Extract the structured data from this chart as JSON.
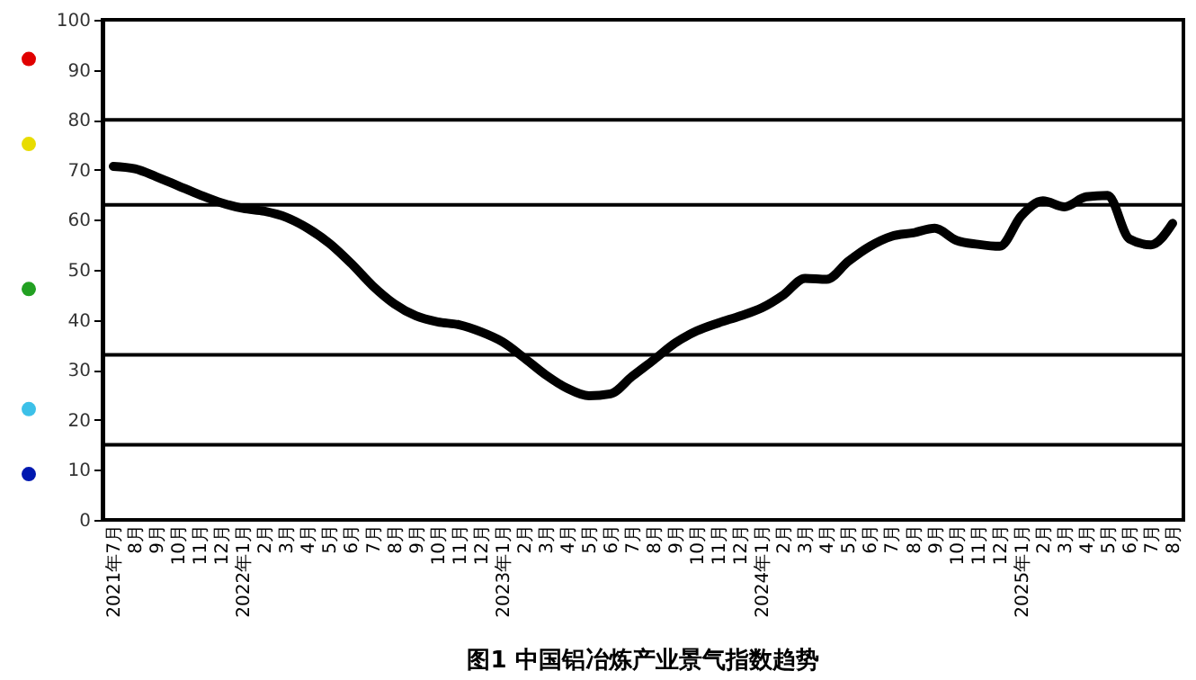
{
  "chart_data": {
    "type": "line",
    "title": "图1  中国铝冶炼产业景气指数趋势",
    "categories": [
      "2021年7月",
      "8月",
      "9月",
      "10月",
      "11月",
      "12月",
      "2022年1月",
      "2月",
      "3月",
      "4月",
      "5月",
      "6月",
      "7月",
      "8月",
      "9月",
      "10月",
      "11月",
      "12月",
      "2023年1月",
      "2月",
      "3月",
      "4月",
      "5月",
      "6月",
      "7月",
      "8月",
      "9月",
      "10月",
      "11月",
      "12月",
      "2024年1月",
      "2月",
      "3月",
      "4月",
      "5月",
      "6月",
      "7月",
      "8月",
      "9月",
      "10月",
      "11月",
      "12月",
      "2025年1月",
      "2月",
      "3月",
      "4月",
      "5月",
      "6月",
      "7月",
      "8月"
    ],
    "series": [
      {
        "color": "#000000",
        "values": [
          70.7,
          70.2,
          68.6,
          66.8,
          65.0,
          63.4,
          62.3,
          61.7,
          60.5,
          58.3,
          55.3,
          51.3,
          46.8,
          43.2,
          40.8,
          39.6,
          39.0,
          37.6,
          35.6,
          32.4,
          29.0,
          26.3,
          24.8,
          25.2,
          28.7,
          32.0,
          35.4,
          37.8,
          39.4,
          40.8,
          42.4,
          45.0,
          48.3,
          48.1,
          51.7,
          54.7,
          56.7,
          57.4,
          58.3,
          55.9,
          55.1,
          54.7,
          60.8,
          63.8,
          62.6,
          64.6,
          64.9,
          56.2,
          55.0,
          59.3
        ]
      }
    ],
    "ylim": [
      0,
      100
    ],
    "yticks": [
      0,
      10,
      20,
      30,
      40,
      50,
      60,
      70,
      80,
      90,
      100
    ],
    "ref_lines": [
      {
        "axis": "y",
        "value": 80,
        "color": "#000000"
      },
      {
        "axis": "y",
        "value": 63,
        "color": "#000000"
      },
      {
        "axis": "y",
        "value": 33,
        "color": "#000000"
      },
      {
        "axis": "y",
        "value": 15,
        "color": "#000000"
      }
    ],
    "grid": false,
    "marker": "none",
    "line_style": "solid"
  }
}
